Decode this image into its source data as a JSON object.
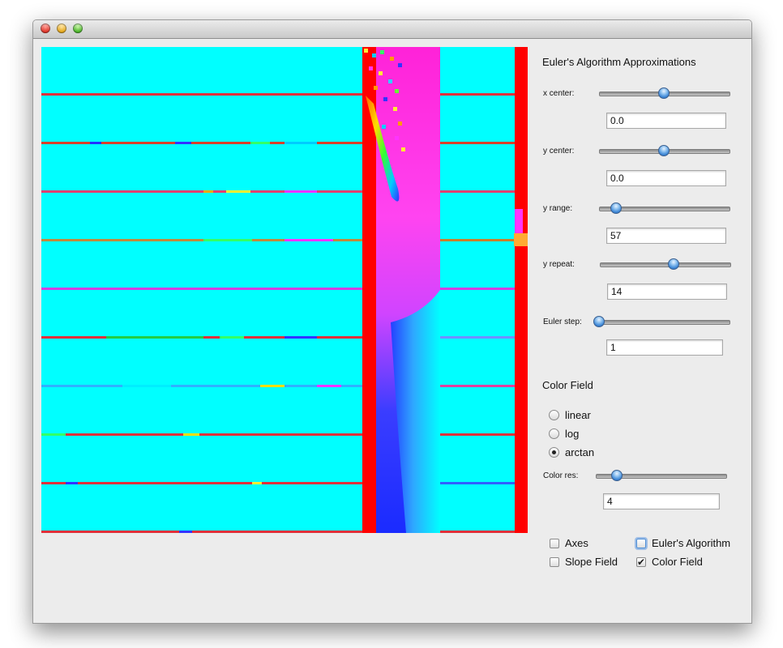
{
  "window": {
    "title": ""
  },
  "controls": {
    "title": "Euler's Algorithm Approximations",
    "sliders": [
      {
        "label": "x center:",
        "value": "0.0",
        "level": 0.5
      },
      {
        "label": "y center:",
        "value": "0.0",
        "level": 0.5
      },
      {
        "label": "y range:",
        "value": "57",
        "level": 0.12
      },
      {
        "label": "y repeat:",
        "value": "14",
        "level": 0.58
      },
      {
        "label": "Euler step:",
        "value": "1",
        "level": 0.0
      }
    ]
  },
  "color_field": {
    "heading": "Color Field",
    "options": [
      {
        "label": "linear",
        "selected": false
      },
      {
        "label": "log",
        "selected": false
      },
      {
        "label": "arctan",
        "selected": true
      }
    ],
    "res_label": "Color res:",
    "res_value": "4",
    "res_level": 0.15
  },
  "toggles": [
    {
      "label": "Axes",
      "checked": false
    },
    {
      "label": "Euler's Algorithm",
      "checked": false
    },
    {
      "label": "Slope Field",
      "checked": false
    },
    {
      "label": "Color Field",
      "checked": true
    }
  ],
  "colors": {
    "cyan": "#00ffff",
    "red": "#ff0000",
    "magenta": "#ff33ff",
    "blue": "#1a2bff",
    "window_bg": "#ececec"
  },
  "icons": {
    "close": "close-icon",
    "minimize": "minimize-icon",
    "maximize": "maximize-icon",
    "check": "checkmark-icon"
  }
}
